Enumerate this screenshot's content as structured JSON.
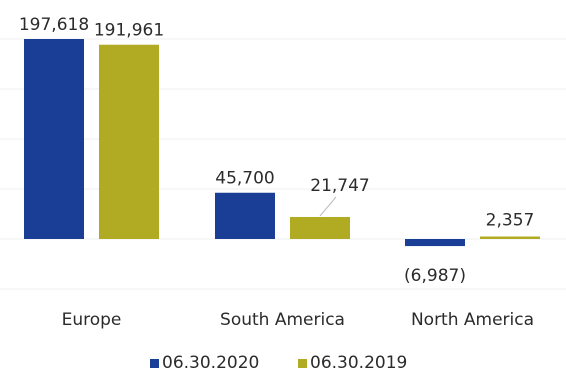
{
  "chart_data": {
    "type": "bar",
    "title": "",
    "xlabel": "",
    "ylabel": "",
    "categories": [
      "Europe",
      "South America",
      "North America"
    ],
    "series": [
      {
        "name": "06.30.2020",
        "values": [
          197618,
          45700,
          -6987
        ],
        "value_labels": [
          "197,618",
          "45,700",
          "(6,987)"
        ],
        "color": "#1a3e96"
      },
      {
        "name": "06.30.2019",
        "values": [
          191961,
          21747,
          2357
        ],
        "value_labels": [
          "191,961",
          "21,747",
          "2,357"
        ],
        "color": "#b1ab24"
      }
    ],
    "ylim": [
      -25000,
      205000
    ],
    "grid": true,
    "axes_visible": false,
    "legend": "bottom-center"
  }
}
